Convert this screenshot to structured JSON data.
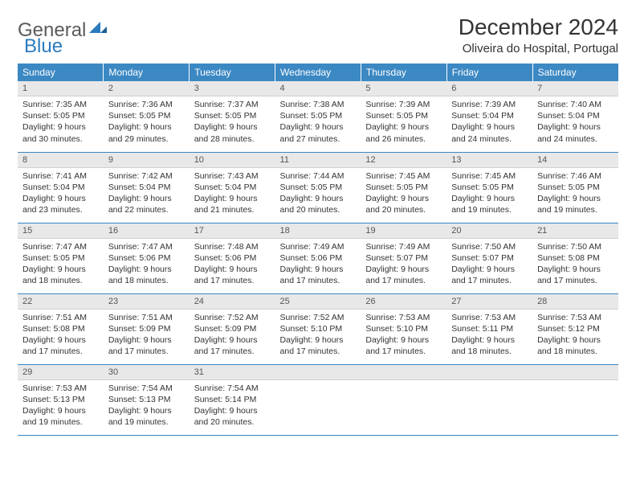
{
  "brand": {
    "part1": "General",
    "part2": "Blue"
  },
  "title": "December 2024",
  "location": "Oliveira do Hospital, Portugal",
  "colors": {
    "header_bg": "#3b88c3",
    "header_text": "#ffffff",
    "daynum_bg": "#e8e8e8",
    "text": "#333333",
    "rule": "#3b88c3"
  },
  "day_names": [
    "Sunday",
    "Monday",
    "Tuesday",
    "Wednesday",
    "Thursday",
    "Friday",
    "Saturday"
  ],
  "weeks": [
    [
      {
        "n": "1",
        "sr": "7:35 AM",
        "ss": "5:05 PM",
        "dl": "9 hours and 30 minutes."
      },
      {
        "n": "2",
        "sr": "7:36 AM",
        "ss": "5:05 PM",
        "dl": "9 hours and 29 minutes."
      },
      {
        "n": "3",
        "sr": "7:37 AM",
        "ss": "5:05 PM",
        "dl": "9 hours and 28 minutes."
      },
      {
        "n": "4",
        "sr": "7:38 AM",
        "ss": "5:05 PM",
        "dl": "9 hours and 27 minutes."
      },
      {
        "n": "5",
        "sr": "7:39 AM",
        "ss": "5:05 PM",
        "dl": "9 hours and 26 minutes."
      },
      {
        "n": "6",
        "sr": "7:39 AM",
        "ss": "5:04 PM",
        "dl": "9 hours and 24 minutes."
      },
      {
        "n": "7",
        "sr": "7:40 AM",
        "ss": "5:04 PM",
        "dl": "9 hours and 24 minutes."
      }
    ],
    [
      {
        "n": "8",
        "sr": "7:41 AM",
        "ss": "5:04 PM",
        "dl": "9 hours and 23 minutes."
      },
      {
        "n": "9",
        "sr": "7:42 AM",
        "ss": "5:04 PM",
        "dl": "9 hours and 22 minutes."
      },
      {
        "n": "10",
        "sr": "7:43 AM",
        "ss": "5:04 PM",
        "dl": "9 hours and 21 minutes."
      },
      {
        "n": "11",
        "sr": "7:44 AM",
        "ss": "5:05 PM",
        "dl": "9 hours and 20 minutes."
      },
      {
        "n": "12",
        "sr": "7:45 AM",
        "ss": "5:05 PM",
        "dl": "9 hours and 20 minutes."
      },
      {
        "n": "13",
        "sr": "7:45 AM",
        "ss": "5:05 PM",
        "dl": "9 hours and 19 minutes."
      },
      {
        "n": "14",
        "sr": "7:46 AM",
        "ss": "5:05 PM",
        "dl": "9 hours and 19 minutes."
      }
    ],
    [
      {
        "n": "15",
        "sr": "7:47 AM",
        "ss": "5:05 PM",
        "dl": "9 hours and 18 minutes."
      },
      {
        "n": "16",
        "sr": "7:47 AM",
        "ss": "5:06 PM",
        "dl": "9 hours and 18 minutes."
      },
      {
        "n": "17",
        "sr": "7:48 AM",
        "ss": "5:06 PM",
        "dl": "9 hours and 17 minutes."
      },
      {
        "n": "18",
        "sr": "7:49 AM",
        "ss": "5:06 PM",
        "dl": "9 hours and 17 minutes."
      },
      {
        "n": "19",
        "sr": "7:49 AM",
        "ss": "5:07 PM",
        "dl": "9 hours and 17 minutes."
      },
      {
        "n": "20",
        "sr": "7:50 AM",
        "ss": "5:07 PM",
        "dl": "9 hours and 17 minutes."
      },
      {
        "n": "21",
        "sr": "7:50 AM",
        "ss": "5:08 PM",
        "dl": "9 hours and 17 minutes."
      }
    ],
    [
      {
        "n": "22",
        "sr": "7:51 AM",
        "ss": "5:08 PM",
        "dl": "9 hours and 17 minutes."
      },
      {
        "n": "23",
        "sr": "7:51 AM",
        "ss": "5:09 PM",
        "dl": "9 hours and 17 minutes."
      },
      {
        "n": "24",
        "sr": "7:52 AM",
        "ss": "5:09 PM",
        "dl": "9 hours and 17 minutes."
      },
      {
        "n": "25",
        "sr": "7:52 AM",
        "ss": "5:10 PM",
        "dl": "9 hours and 17 minutes."
      },
      {
        "n": "26",
        "sr": "7:53 AM",
        "ss": "5:10 PM",
        "dl": "9 hours and 17 minutes."
      },
      {
        "n": "27",
        "sr": "7:53 AM",
        "ss": "5:11 PM",
        "dl": "9 hours and 18 minutes."
      },
      {
        "n": "28",
        "sr": "7:53 AM",
        "ss": "5:12 PM",
        "dl": "9 hours and 18 minutes."
      }
    ],
    [
      {
        "n": "29",
        "sr": "7:53 AM",
        "ss": "5:13 PM",
        "dl": "9 hours and 19 minutes."
      },
      {
        "n": "30",
        "sr": "7:54 AM",
        "ss": "5:13 PM",
        "dl": "9 hours and 19 minutes."
      },
      {
        "n": "31",
        "sr": "7:54 AM",
        "ss": "5:14 PM",
        "dl": "9 hours and 20 minutes."
      },
      null,
      null,
      null,
      null
    ]
  ],
  "labels": {
    "sunrise": "Sunrise: ",
    "sunset": "Sunset: ",
    "daylight": "Daylight: "
  }
}
